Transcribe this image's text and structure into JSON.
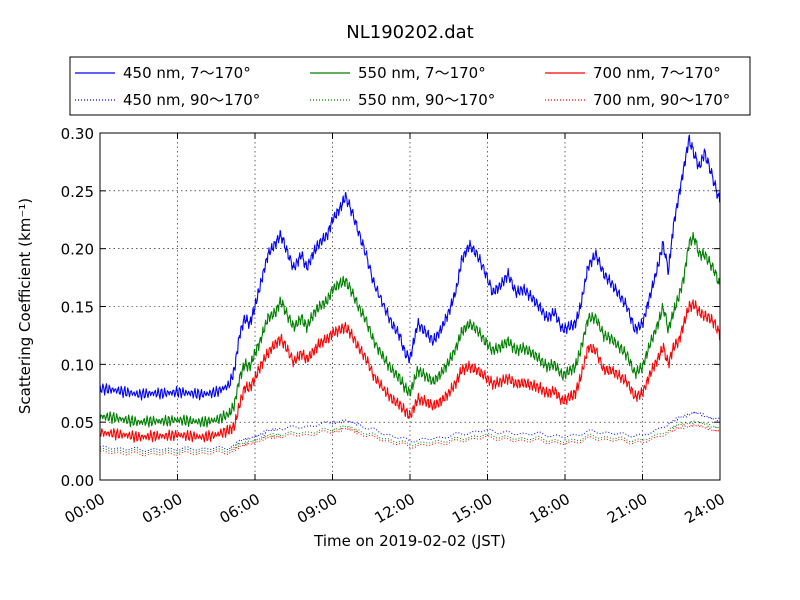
{
  "chart_data": {
    "type": "line",
    "title": "NL190202.dat",
    "xlabel": "Time on 2019-02-02 (JST)",
    "ylabel": "Scattering Coefficient (km⁻¹)",
    "x_ticks": [
      "00:00",
      "03:00",
      "06:00",
      "09:00",
      "12:00",
      "15:00",
      "18:00",
      "21:00",
      "24:00"
    ],
    "y_ticks": [
      "0.00",
      "0.05",
      "0.10",
      "0.15",
      "0.20",
      "0.25",
      "0.30"
    ],
    "xlim_hours": [
      0,
      24
    ],
    "ylim": [
      0,
      0.3
    ],
    "grid": true,
    "legend_position": "top, above plot (3 columns)",
    "series": [
      {
        "name": "450 nm, 7～170°",
        "color": "#0000ff",
        "style": "solid",
        "x": [
          0,
          0.5,
          1,
          1.5,
          2,
          2.5,
          3,
          3.5,
          4,
          4.5,
          5,
          5.2,
          5.4,
          5.6,
          5.8,
          6,
          6.2,
          6.5,
          6.8,
          7,
          7.2,
          7.5,
          7.8,
          8,
          8.3,
          8.5,
          8.8,
          9,
          9.3,
          9.5,
          9.7,
          10,
          10.3,
          10.6,
          11,
          11.3,
          11.6,
          11.8,
          12,
          12.3,
          12.6,
          12.9,
          13.2,
          13.5,
          13.8,
          14,
          14.3,
          14.6,
          14.9,
          15.2,
          15.5,
          15.8,
          16.1,
          16.4,
          16.7,
          17,
          17.3,
          17.6,
          17.9,
          18.2,
          18.4,
          18.6,
          18.9,
          19.2,
          19.5,
          19.8,
          20.1,
          20.4,
          20.7,
          21,
          21.3,
          21.6,
          21.8,
          22,
          22.2,
          22.4,
          22.6,
          22.8,
          23,
          23.2,
          23.4,
          23.6,
          23.8,
          24
        ],
        "values": [
          0.079,
          0.078,
          0.076,
          0.074,
          0.075,
          0.075,
          0.076,
          0.075,
          0.074,
          0.076,
          0.082,
          0.095,
          0.125,
          0.14,
          0.135,
          0.15,
          0.168,
          0.195,
          0.205,
          0.212,
          0.2,
          0.183,
          0.195,
          0.183,
          0.198,
          0.205,
          0.212,
          0.225,
          0.235,
          0.245,
          0.235,
          0.215,
          0.195,
          0.17,
          0.15,
          0.135,
          0.125,
          0.11,
          0.105,
          0.135,
          0.128,
          0.12,
          0.13,
          0.145,
          0.165,
          0.19,
          0.203,
          0.195,
          0.18,
          0.162,
          0.168,
          0.178,
          0.162,
          0.165,
          0.158,
          0.15,
          0.14,
          0.145,
          0.13,
          0.133,
          0.135,
          0.15,
          0.185,
          0.195,
          0.178,
          0.17,
          0.16,
          0.15,
          0.13,
          0.135,
          0.16,
          0.185,
          0.205,
          0.18,
          0.22,
          0.245,
          0.27,
          0.295,
          0.282,
          0.27,
          0.283,
          0.27,
          0.255,
          0.24
        ]
      },
      {
        "name": "550 nm, 7～170°",
        "color": "#008000",
        "style": "solid",
        "x": [
          0,
          0.5,
          1,
          1.5,
          2,
          2.5,
          3,
          3.5,
          4,
          4.5,
          5,
          5.2,
          5.4,
          5.6,
          5.8,
          6,
          6.2,
          6.5,
          6.8,
          7,
          7.2,
          7.5,
          7.8,
          8,
          8.3,
          8.5,
          8.8,
          9,
          9.3,
          9.5,
          9.7,
          10,
          10.3,
          10.6,
          11,
          11.3,
          11.6,
          11.8,
          12,
          12.3,
          12.6,
          12.9,
          13.2,
          13.5,
          13.8,
          14,
          14.3,
          14.6,
          14.9,
          15.2,
          15.5,
          15.8,
          16.1,
          16.4,
          16.7,
          17,
          17.3,
          17.6,
          17.9,
          18.2,
          18.4,
          18.6,
          18.9,
          19.2,
          19.5,
          19.8,
          20.1,
          20.4,
          20.7,
          21,
          21.3,
          21.6,
          21.8,
          22,
          22.2,
          22.4,
          22.6,
          22.8,
          23,
          23.2,
          23.4,
          23.6,
          23.8,
          24
        ],
        "values": [
          0.055,
          0.054,
          0.052,
          0.05,
          0.051,
          0.051,
          0.052,
          0.051,
          0.05,
          0.052,
          0.057,
          0.065,
          0.088,
          0.1,
          0.098,
          0.11,
          0.12,
          0.14,
          0.145,
          0.155,
          0.145,
          0.132,
          0.14,
          0.132,
          0.145,
          0.15,
          0.155,
          0.165,
          0.17,
          0.172,
          0.165,
          0.15,
          0.138,
          0.12,
          0.105,
          0.095,
          0.088,
          0.08,
          0.075,
          0.095,
          0.09,
          0.085,
          0.092,
          0.102,
          0.115,
          0.128,
          0.135,
          0.13,
          0.12,
          0.112,
          0.115,
          0.12,
          0.112,
          0.114,
          0.11,
          0.105,
          0.098,
          0.1,
          0.09,
          0.095,
          0.098,
          0.112,
          0.14,
          0.14,
          0.125,
          0.122,
          0.115,
          0.108,
          0.092,
          0.098,
          0.118,
          0.135,
          0.15,
          0.13,
          0.145,
          0.158,
          0.175,
          0.205,
          0.21,
          0.195,
          0.195,
          0.188,
          0.18,
          0.168
        ]
      },
      {
        "name": "700 nm, 7～170°",
        "color": "#ff0000",
        "style": "solid",
        "x": [
          0,
          0.5,
          1,
          1.5,
          2,
          2.5,
          3,
          3.5,
          4,
          4.5,
          5,
          5.2,
          5.4,
          5.6,
          5.8,
          6,
          6.2,
          6.5,
          6.8,
          7,
          7.2,
          7.5,
          7.8,
          8,
          8.3,
          8.5,
          8.8,
          9,
          9.3,
          9.5,
          9.7,
          10,
          10.3,
          10.6,
          11,
          11.3,
          11.6,
          11.8,
          12,
          12.3,
          12.6,
          12.9,
          13.2,
          13.5,
          13.8,
          14,
          14.3,
          14.6,
          14.9,
          15.2,
          15.5,
          15.8,
          16.1,
          16.4,
          16.7,
          17,
          17.3,
          17.6,
          17.9,
          18.2,
          18.4,
          18.6,
          18.9,
          19.2,
          19.5,
          19.8,
          20.1,
          20.4,
          20.7,
          21,
          21.3,
          21.6,
          21.8,
          22,
          22.2,
          22.4,
          22.6,
          22.8,
          23,
          23.2,
          23.4,
          23.6,
          23.8,
          24
        ],
        "values": [
          0.041,
          0.04,
          0.039,
          0.037,
          0.038,
          0.038,
          0.039,
          0.038,
          0.037,
          0.039,
          0.043,
          0.046,
          0.065,
          0.08,
          0.08,
          0.088,
          0.098,
          0.11,
          0.118,
          0.122,
          0.115,
          0.102,
          0.11,
          0.104,
          0.112,
          0.118,
          0.122,
          0.127,
          0.13,
          0.132,
          0.127,
          0.115,
          0.105,
          0.09,
          0.078,
          0.07,
          0.065,
          0.06,
          0.055,
          0.07,
          0.068,
          0.064,
          0.068,
          0.075,
          0.085,
          0.095,
          0.098,
          0.095,
          0.09,
          0.083,
          0.085,
          0.088,
          0.083,
          0.084,
          0.082,
          0.08,
          0.075,
          0.077,
          0.068,
          0.072,
          0.075,
          0.088,
          0.115,
          0.112,
          0.095,
          0.095,
          0.09,
          0.085,
          0.072,
          0.075,
          0.092,
          0.105,
          0.115,
          0.1,
          0.115,
          0.12,
          0.135,
          0.15,
          0.152,
          0.145,
          0.142,
          0.14,
          0.135,
          0.125
        ]
      },
      {
        "name": "450 nm, 90～170°",
        "color": "#0000ff",
        "style": "dotted",
        "x": [
          0,
          1,
          2,
          3,
          4,
          5,
          5.5,
          6,
          6.5,
          7,
          8,
          9,
          9.5,
          10,
          11,
          12,
          13,
          14,
          15,
          16,
          17,
          18,
          19,
          20,
          21,
          22,
          22.5,
          23,
          23.5,
          24
        ],
        "values": [
          0.028,
          0.027,
          0.026,
          0.027,
          0.027,
          0.028,
          0.034,
          0.038,
          0.042,
          0.045,
          0.046,
          0.05,
          0.051,
          0.048,
          0.04,
          0.034,
          0.036,
          0.04,
          0.043,
          0.04,
          0.04,
          0.037,
          0.042,
          0.04,
          0.038,
          0.048,
          0.055,
          0.058,
          0.055,
          0.052
        ]
      },
      {
        "name": "550 nm, 90～170°",
        "color": "#008000",
        "style": "dotted",
        "x": [
          0,
          1,
          2,
          3,
          4,
          5,
          5.5,
          6,
          6.5,
          7,
          8,
          9,
          9.5,
          10,
          11,
          12,
          13,
          14,
          15,
          16,
          17,
          18,
          19,
          20,
          21,
          22,
          22.5,
          23,
          23.5,
          24
        ],
        "values": [
          0.026,
          0.025,
          0.024,
          0.025,
          0.025,
          0.026,
          0.031,
          0.035,
          0.038,
          0.04,
          0.041,
          0.044,
          0.046,
          0.043,
          0.036,
          0.031,
          0.033,
          0.036,
          0.039,
          0.036,
          0.036,
          0.033,
          0.038,
          0.036,
          0.034,
          0.043,
          0.049,
          0.05,
          0.048,
          0.045
        ]
      },
      {
        "name": "700 nm, 90～170°",
        "color": "#ff0000",
        "style": "dotted",
        "x": [
          0,
          1,
          2,
          3,
          4,
          5,
          5.5,
          6,
          6.5,
          7,
          8,
          9,
          9.5,
          10,
          11,
          12,
          13,
          14,
          15,
          16,
          17,
          18,
          19,
          20,
          21,
          22,
          22.5,
          23,
          23.5,
          24
        ],
        "values": [
          0.024,
          0.023,
          0.022,
          0.023,
          0.023,
          0.024,
          0.029,
          0.033,
          0.036,
          0.038,
          0.039,
          0.042,
          0.044,
          0.041,
          0.034,
          0.029,
          0.031,
          0.034,
          0.037,
          0.034,
          0.034,
          0.031,
          0.036,
          0.034,
          0.032,
          0.041,
          0.046,
          0.047,
          0.045,
          0.042
        ]
      }
    ]
  }
}
